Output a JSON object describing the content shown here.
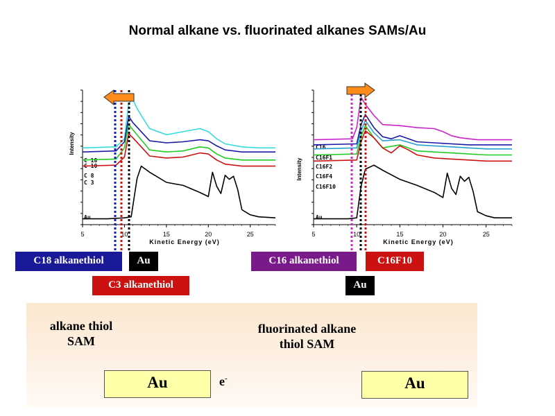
{
  "title": "Normal alkane vs. fluorinated alkanes SAMs/Au",
  "chart_data": [
    {
      "type": "line",
      "xlabel": "Kinetic Energy (eV)",
      "ylabel": "Intensity",
      "xlim": [
        5,
        28
      ],
      "x_ticks": [
        "5",
        "10",
        "15",
        "20",
        "25"
      ],
      "series": [
        {
          "name": "C 18",
          "color": "#33dddd",
          "x": [
            5,
            9,
            10,
            10.5,
            11,
            11.5,
            12,
            13,
            15,
            17,
            19,
            20,
            21,
            22,
            24,
            26,
            28
          ],
          "y": [
            7.3,
            7.4,
            8.2,
            11.7,
            12.1,
            11.2,
            10.5,
            9.2,
            8.6,
            8.9,
            9.2,
            8.9,
            8.2,
            7.7,
            7.4,
            7.3,
            7.3
          ]
        },
        {
          "name": "C 10",
          "color": "#1a1aa8",
          "x": [
            5,
            9,
            10,
            10.5,
            11,
            12,
            13,
            15,
            17,
            19,
            20,
            21,
            22,
            24,
            26,
            28
          ],
          "y": [
            6.9,
            7.0,
            7.9,
            10.4,
            9.8,
            8.9,
            8.0,
            7.8,
            7.9,
            8.1,
            8.0,
            7.5,
            7.1,
            6.9,
            6.9,
            6.9
          ]
        },
        {
          "name": "C 8",
          "color": "#22cc22",
          "x": [
            5,
            9,
            10,
            10.5,
            11,
            12,
            13,
            15,
            17,
            19,
            20,
            21,
            22,
            24,
            26,
            28
          ],
          "y": [
            6.1,
            6.2,
            7.3,
            9.6,
            9.1,
            8.1,
            7.1,
            6.9,
            7.0,
            7.4,
            7.3,
            6.7,
            6.3,
            6.1,
            6.1,
            6.1
          ]
        },
        {
          "name": "C 3",
          "color": "#cc1111",
          "x": [
            5,
            9,
            10,
            10.5,
            11,
            12,
            13,
            15,
            17,
            19,
            20,
            21,
            22,
            24,
            26,
            28
          ],
          "y": [
            5.5,
            5.6,
            6.4,
            8.7,
            8.3,
            7.4,
            6.5,
            6.3,
            6.4,
            6.8,
            6.7,
            6.1,
            5.7,
            5.5,
            5.5,
            5.5
          ]
        },
        {
          "name": "Au",
          "color": "#000000",
          "x": [
            5,
            8,
            10,
            10.8,
            11.5,
            12,
            13,
            15,
            17,
            19,
            20,
            20.5,
            21,
            21.5,
            22,
            22.5,
            23,
            23.5,
            24,
            25,
            26,
            28
          ],
          "y": [
            0.3,
            0.3,
            0.4,
            0.5,
            4.3,
            5.5,
            4.9,
            3.9,
            3.6,
            2.9,
            2.5,
            4.9,
            3.5,
            2.8,
            4.6,
            4.2,
            4.5,
            3.2,
            1.2,
            0.7,
            0.5,
            0.4
          ]
        }
      ]
    },
    {
      "type": "line",
      "xlabel": "Kinetic Energy (eV)",
      "ylabel": "Intensity",
      "xlim": [
        5,
        28
      ],
      "x_ticks": [
        "5",
        "10",
        "15",
        "20",
        "25"
      ],
      "series": [
        {
          "name": "C16",
          "color": "#cc22cc",
          "x": [
            5,
            9.5,
            10,
            10.5,
            11,
            12,
            13,
            15,
            17,
            19,
            20,
            21,
            22,
            24,
            26,
            28
          ],
          "y": [
            8.1,
            8.2,
            9.3,
            12.3,
            11.6,
            10.5,
            9.6,
            9.5,
            9.3,
            9.2,
            8.9,
            8.5,
            8.3,
            8.1,
            8.1,
            8.1
          ]
        },
        {
          "name": "C16F1",
          "color": "#1a1aa8",
          "x": [
            5,
            10,
            10.5,
            11,
            12,
            13,
            14,
            15,
            17,
            19,
            21,
            23,
            25,
            28
          ],
          "y": [
            7.6,
            7.7,
            9.6,
            10.6,
            9.3,
            8.4,
            8.2,
            8.5,
            7.9,
            7.8,
            7.7,
            7.6,
            7.6,
            7.6
          ]
        },
        {
          "name": "C16F2",
          "color": "#2a9fd0",
          "x": [
            5,
            10,
            10.5,
            11,
            12,
            13,
            15,
            17,
            19,
            21,
            23,
            25,
            28
          ],
          "y": [
            7.2,
            7.3,
            9.0,
            10.0,
            8.8,
            8.0,
            8.1,
            7.6,
            7.5,
            7.4,
            7.3,
            7.2,
            7.2
          ]
        },
        {
          "name": "C16F4",
          "color": "#22cc22",
          "x": [
            5,
            10,
            10.5,
            11,
            12,
            13,
            15,
            17,
            19,
            21,
            23,
            25,
            28
          ],
          "y": [
            6.6,
            6.7,
            8.4,
            9.5,
            8.3,
            7.3,
            7.6,
            7.0,
            6.9,
            6.8,
            6.7,
            6.6,
            6.6
          ]
        },
        {
          "name": "C16F10",
          "color": "#cc1111",
          "x": [
            5,
            10,
            10.5,
            11,
            12,
            13,
            14,
            15,
            16,
            17,
            19,
            21,
            23,
            25,
            28
          ],
          "y": [
            6.0,
            6.1,
            7.9,
            9.0,
            8.3,
            7.3,
            6.8,
            7.5,
            7.1,
            6.6,
            6.3,
            6.2,
            6.1,
            6.0,
            6.0
          ]
        },
        {
          "name": "Au",
          "color": "#000000",
          "x": [
            5,
            9,
            10,
            10.5,
            11,
            12,
            13,
            15,
            17,
            19,
            20,
            20.5,
            21,
            21.5,
            22,
            22.5,
            23,
            23.5,
            24,
            25,
            26,
            28
          ],
          "y": [
            0.3,
            0.3,
            0.4,
            3.5,
            5.2,
            5.6,
            5.1,
            4.2,
            3.6,
            2.9,
            2.4,
            4.8,
            3.3,
            2.7,
            4.5,
            4.0,
            4.4,
            3.0,
            1.0,
            0.6,
            0.4,
            0.4
          ]
        }
      ]
    }
  ],
  "labels": {
    "c18_alkanethiol": "C18 alkanethiol",
    "au_left": "Au",
    "c3_alkanethiol": "C3 alkanethiol",
    "c16_alkanethiol": "C16 alkanethiol",
    "c16f10": "C16F10",
    "au_right": "Au"
  },
  "sam": {
    "left_line1": "alkane thiol",
    "left_line2": "SAM",
    "right_line1": "fluorinated alkane",
    "right_line2": "thiol SAM",
    "au_left": "Au",
    "au_right": "Au",
    "electron": "e",
    "electron_sup": "-",
    "plus": "+",
    "minus": "−"
  },
  "colors": {
    "c18_box": "#1a1a99",
    "c3_box": "#cc1111",
    "c16_box": "#7a1a8a",
    "c16f10_box": "#cc1111",
    "au_box": "#000000",
    "alkane_molecule": "#88cc22",
    "fluoro_molecule": "#5a5f9e",
    "arrow": "#ff8c1a"
  }
}
